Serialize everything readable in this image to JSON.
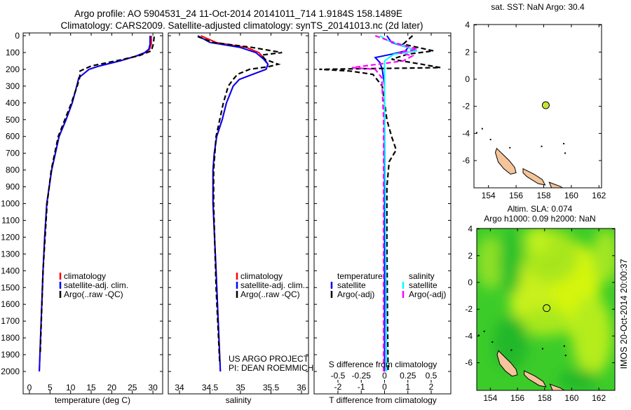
{
  "title": {
    "line1": "Argo profile: AO 5904531_24 11-Oct-2014 20141011_714 1.9184S 158.1489E",
    "line2": "Climatology: CARS2009. Satellite-adjusted climatology: synTS_20141013.nc (2d later)"
  },
  "credit": {
    "line1": "US ARGO PROJECT",
    "line2": "PI: DEAN ROEMMICH"
  },
  "timestamp": "IMOS 20-Oct-2014 20:00:37",
  "colors": {
    "climatology": "#ff0000",
    "satellite": "#0000ff",
    "argo": "#000000",
    "sal_satellite": "#00ffff",
    "sal_argo": "#ff00ff",
    "land": "#f5c49a",
    "dot": "#c8e632"
  },
  "chart_data": [
    {
      "type": "line",
      "name": "temperature-profile",
      "xlabel": "temperature (deg C)",
      "ylabel": "depth",
      "xlim": [
        -1.5,
        31.5
      ],
      "ylim": [
        2000,
        0
      ],
      "xticks": [
        "0",
        "5",
        "10",
        "15",
        "20",
        "25",
        "30"
      ],
      "xtick_values": [
        0,
        5,
        10,
        15,
        20,
        25,
        30
      ],
      "yticks": [
        "0",
        "100",
        "200",
        "300",
        "400",
        "500",
        "600",
        "700",
        "800",
        "900",
        "1000",
        "1100",
        "1200",
        "1300",
        "1400",
        "1500",
        "1600",
        "1700",
        "1800",
        "1900",
        "2000"
      ],
      "legend": [
        "climatology",
        "satellite-adj. clim.",
        "Argo(..raw -QC)"
      ],
      "series": [
        {
          "name": "climatology",
          "color": "#ff0000",
          "depth": [
            0,
            50,
            80,
            100,
            120,
            150,
            180,
            200,
            250,
            300,
            400,
            500,
            600,
            700,
            800,
            900,
            1000,
            1200,
            1400,
            1600,
            1800,
            2000
          ],
          "values": [
            29.6,
            29.6,
            29.2,
            28.2,
            26.2,
            22,
            17,
            14.5,
            12,
            11.5,
            10.4,
            8.9,
            7.2,
            6.3,
            5.4,
            4.8,
            4.2,
            3.7,
            3.3,
            3,
            2.7,
            2.4
          ]
        },
        {
          "name": "satellite-adj. clim.",
          "color": "#0000ff",
          "depth": [
            0,
            50,
            80,
            100,
            120,
            150,
            180,
            200,
            250,
            300,
            400,
            500,
            600,
            700,
            800,
            900,
            1000,
            1200,
            1400,
            1600,
            1800,
            2000
          ],
          "values": [
            29.3,
            29.3,
            29,
            28,
            26,
            22,
            17,
            14.5,
            12,
            11.5,
            10.4,
            8.9,
            7.2,
            6.3,
            5.4,
            4.8,
            4.2,
            3.7,
            3.3,
            3,
            2.7,
            2.4
          ]
        },
        {
          "name": "Argo(..raw -QC)",
          "color": "#000000",
          "dashed": true,
          "depth": [
            5,
            50,
            90,
            120,
            150,
            180,
            210,
            250,
            300,
            400,
            600,
            800,
            1000,
            1400,
            1900
          ],
          "values": [
            30.3,
            30.1,
            29.6,
            26.5,
            21,
            15,
            12.3,
            12.2,
            11.6,
            10.2,
            7,
            5.3,
            4.3,
            3.3,
            2.6
          ]
        }
      ]
    },
    {
      "type": "line",
      "name": "salinity-profile",
      "xlabel": "salinity",
      "xlim": [
        33.8,
        36.1
      ],
      "ylim": [
        2000,
        0
      ],
      "xticks": [
        "34",
        "34.5",
        "35",
        "35.5",
        "36"
      ],
      "xtick_values": [
        34,
        34.5,
        35,
        35.5,
        36
      ],
      "legend": [
        "climatology",
        "satellite-adj. clim.",
        "Argo(..raw -QC)"
      ],
      "series": [
        {
          "name": "climatology",
          "color": "#ff0000",
          "depth": [
            0,
            40,
            70,
            100,
            140,
            170,
            200,
            230,
            260,
            300,
            400,
            500,
            600,
            700,
            800,
            1000,
            1400,
            2000
          ],
          "values": [
            34.35,
            34.6,
            35.1,
            35.3,
            35.4,
            35.45,
            35.42,
            35.2,
            34.98,
            34.88,
            34.77,
            34.7,
            34.61,
            34.57,
            34.55,
            34.55,
            34.6,
            34.67
          ]
        },
        {
          "name": "satellite-adj. clim.",
          "color": "#0000ff",
          "depth": [
            0,
            40,
            70,
            100,
            140,
            170,
            200,
            230,
            260,
            300,
            400,
            500,
            600,
            700,
            800,
            1000,
            1400,
            2000
          ],
          "values": [
            34.3,
            34.5,
            35.0,
            35.25,
            35.38,
            35.45,
            35.42,
            35.2,
            34.98,
            34.88,
            34.77,
            34.7,
            34.61,
            34.57,
            34.55,
            34.55,
            34.6,
            34.67
          ]
        },
        {
          "name": "Argo(..raw -QC)",
          "color": "#000000",
          "dashed": true,
          "depth": [
            5,
            40,
            70,
            100,
            115,
            140,
            170,
            185,
            200,
            230,
            260,
            300,
            400,
            500,
            600,
            800,
            1000,
            1500,
            1950
          ],
          "values": [
            34.3,
            34.55,
            35.2,
            35.68,
            35.35,
            35.4,
            35.62,
            35.45,
            35.15,
            34.95,
            34.88,
            34.8,
            34.72,
            34.66,
            34.6,
            34.56,
            34.56,
            34.6,
            34.66
          ]
        }
      ]
    },
    {
      "type": "line",
      "name": "difference-profile",
      "xlabel": "T difference from climatology",
      "x2label": "S difference from climatology",
      "xlim": [
        -3,
        3
      ],
      "ylim": [
        2000,
        0
      ],
      "xticks": [
        "-2",
        "-1",
        "0",
        "1",
        "2"
      ],
      "xtick_values": [
        -2,
        -1,
        0,
        1,
        2
      ],
      "x2ticks": [
        "-0.5",
        "-0.25",
        "0",
        "0.25",
        "0.5"
      ],
      "x2tick_values": [
        -0.5,
        -0.25,
        0,
        0.25,
        0.5
      ],
      "legend_temperature": {
        "title": "temperature",
        "items": [
          "satellite",
          "Argo(-adj)"
        ]
      },
      "legend_salinity": {
        "title": "salinity",
        "items": [
          "satellite",
          "Argo(-adj)"
        ]
      },
      "series": [
        {
          "name": "T satellite",
          "color": "#0000ff",
          "axis": "T",
          "depth": [
            0,
            40,
            70,
            90,
            110,
            130,
            160,
            200,
            300,
            600,
            1000,
            2000
          ],
          "values": [
            0.1,
            0.3,
            1.0,
            0.9,
            0.3,
            -0.4,
            -0.2,
            -0.1,
            0,
            0,
            0,
            0
          ]
        },
        {
          "name": "T Argo(-adj)",
          "color": "#000000",
          "axis": "T",
          "dashed": true,
          "depth": [
            0,
            50,
            90,
            110,
            140,
            170,
            190,
            200,
            210,
            230,
            300,
            500,
            600,
            680,
            750,
            900,
            1200,
            1600,
            2000
          ],
          "values": [
            1.2,
            0.8,
            2.1,
            1.0,
            0.3,
            1.6,
            2.4,
            -2.8,
            -1.5,
            -0.5,
            -0.1,
            0.1,
            0.3,
            0.5,
            0.2,
            0.1,
            0.1,
            0.12,
            0.15
          ]
        },
        {
          "name": "S satellite",
          "color": "#00ffff",
          "axis": "S",
          "depth": [
            0,
            30,
            60,
            90,
            110,
            150,
            200,
            400,
            1000,
            2000
          ],
          "values": [
            -0.05,
            0.04,
            0.2,
            0.35,
            0.1,
            0,
            0,
            0,
            0.01,
            0.02
          ]
        },
        {
          "name": "S Argo(-adj)",
          "color": "#ff00ff",
          "axis": "S",
          "dashed": true,
          "depth": [
            0,
            40,
            80,
            100,
            120,
            150,
            190,
            200,
            250,
            500,
            1000,
            2000
          ],
          "values": [
            -0.1,
            0.1,
            0.35,
            0.15,
            0.3,
            0.2,
            -0.35,
            -0.1,
            -0.03,
            -0.01,
            -0.01,
            -0.01
          ]
        }
      ]
    },
    {
      "type": "scatter",
      "name": "sst-map",
      "title": "sat. SST: NaN  Argo: 30.4",
      "xlim": [
        153,
        163.3
      ],
      "ylim": [
        -8,
        4
      ],
      "xticks": [
        "154",
        "156",
        "158",
        "160",
        "162"
      ],
      "xtick_values": [
        154,
        156,
        158,
        160,
        162
      ],
      "yticks": [
        "4",
        "2",
        "0",
        "-2",
        "-4",
        "-6"
      ],
      "ytick_values": [
        4,
        2,
        0,
        -2,
        -4,
        -6
      ],
      "point": {
        "lon": 158.15,
        "lat": -1.92
      }
    },
    {
      "type": "heatmap",
      "name": "sla-map",
      "title": "Altim. SLA: 0.074",
      "subtitle": "Argo h1000: 0.09 h2000: NaN",
      "xlim": [
        153,
        163.3
      ],
      "ylim": [
        -8,
        4
      ],
      "xticks": [
        "154",
        "156",
        "158",
        "160",
        "162"
      ],
      "xtick_values": [
        154,
        156,
        158,
        160,
        162
      ],
      "yticks": [
        "4",
        "2",
        "0",
        "-2",
        "-4",
        "-6"
      ],
      "ytick_values": [
        4,
        2,
        0,
        -2,
        -4,
        -6
      ],
      "point": {
        "lon": 158.15,
        "lat": -1.92
      }
    }
  ]
}
